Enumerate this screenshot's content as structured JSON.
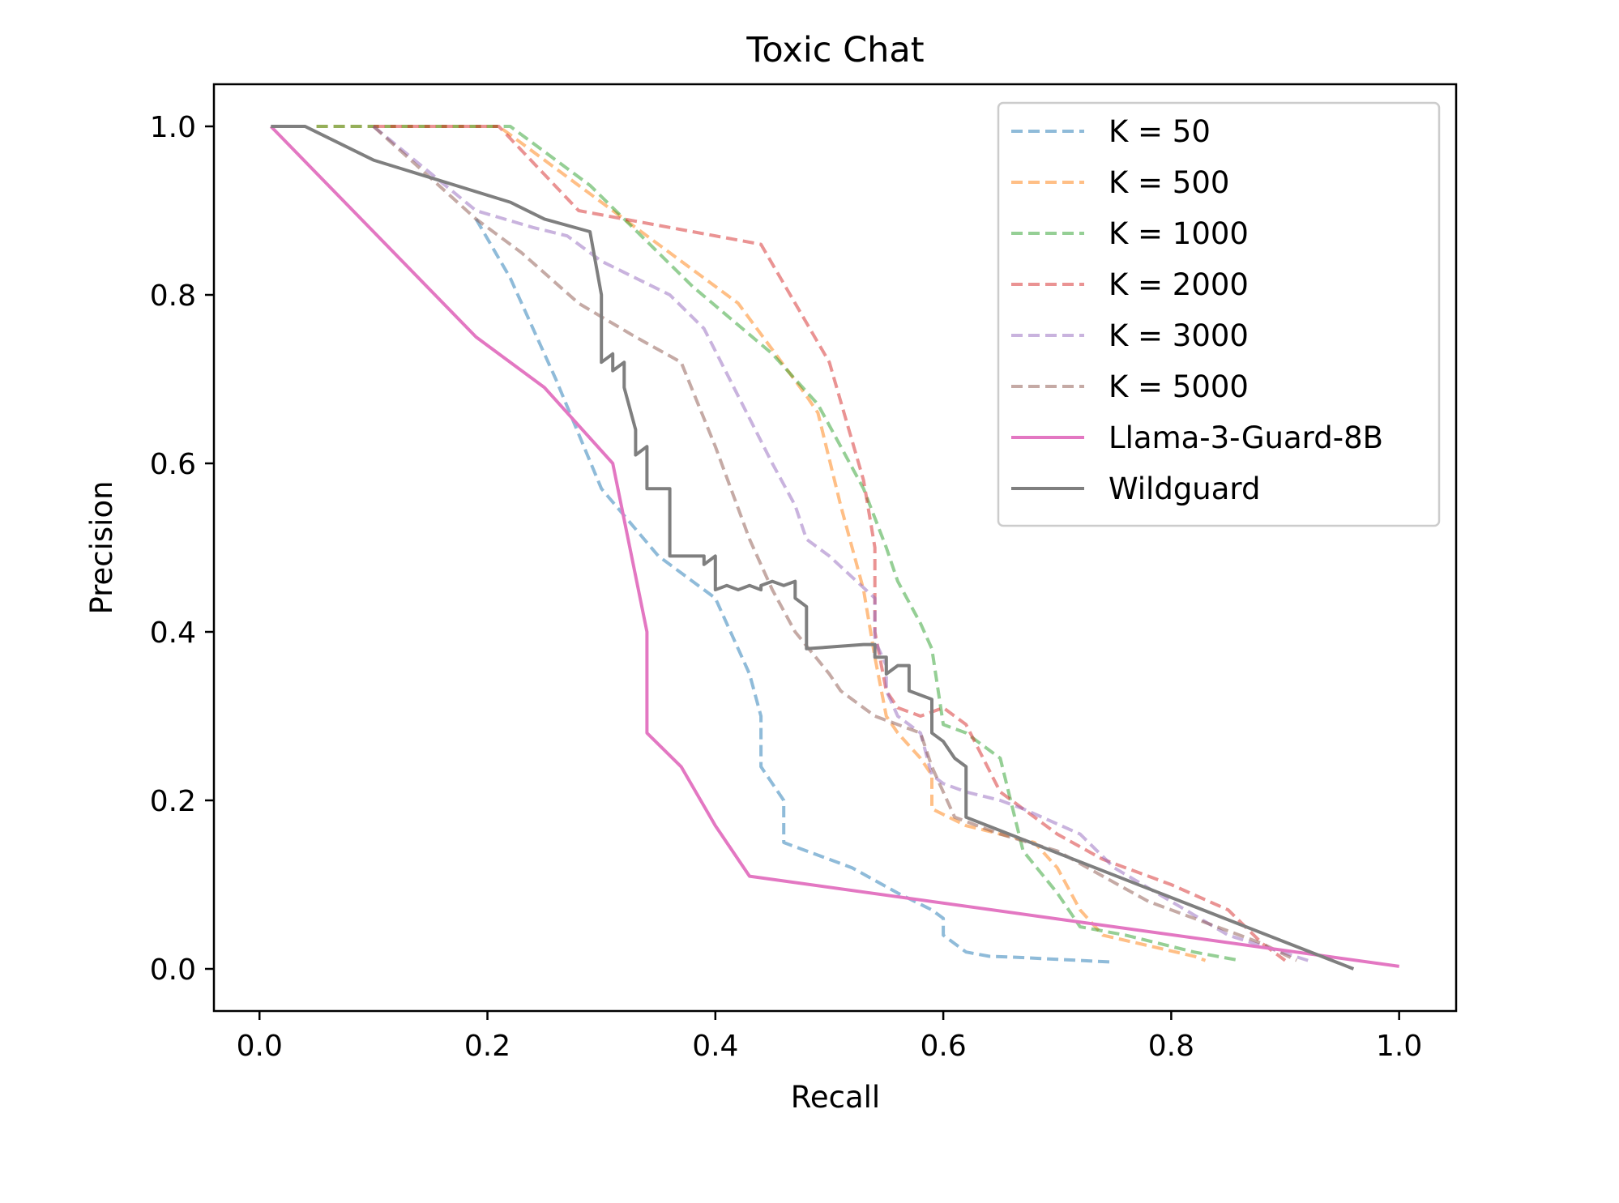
{
  "chart_data": {
    "type": "line",
    "title": "Toxic Chat",
    "xlabel": "Recall",
    "ylabel": "Precision",
    "xlim": [
      -0.04,
      1.05
    ],
    "ylim": [
      -0.05,
      1.05
    ],
    "xticks": [
      0.0,
      0.2,
      0.4,
      0.6,
      0.8,
      1.0
    ],
    "yticks": [
      0.0,
      0.2,
      0.4,
      0.6,
      0.8,
      1.0
    ],
    "xtick_labels": [
      "0.0",
      "0.2",
      "0.4",
      "0.6",
      "0.8",
      "1.0"
    ],
    "ytick_labels": [
      "0.0",
      "0.2",
      "0.4",
      "0.6",
      "0.8",
      "1.0"
    ],
    "grid": false,
    "legend_position": "top-right",
    "series": [
      {
        "name": "K = 50",
        "color": "#1f77b4",
        "style": "dashed",
        "x": [
          0.19,
          0.22,
          0.26,
          0.3,
          0.35,
          0.4,
          0.43,
          0.44,
          0.44,
          0.46,
          0.46,
          0.52,
          0.56,
          0.59,
          0.6,
          0.6,
          0.62,
          0.64,
          0.66,
          0.72,
          0.75
        ],
        "y": [
          0.89,
          0.82,
          0.7,
          0.57,
          0.49,
          0.44,
          0.35,
          0.3,
          0.24,
          0.2,
          0.15,
          0.12,
          0.09,
          0.07,
          0.06,
          0.04,
          0.02,
          0.015,
          0.014,
          0.01,
          0.008
        ]
      },
      {
        "name": "K = 500",
        "color": "#ff7f0e",
        "style": "dashed",
        "x": [
          0.05,
          0.21,
          0.26,
          0.34,
          0.42,
          0.48,
          0.49,
          0.51,
          0.52,
          0.53,
          0.54,
          0.55,
          0.56,
          0.58,
          0.59,
          0.59,
          0.62,
          0.65,
          0.68,
          0.7,
          0.72,
          0.74,
          0.82,
          0.83
        ],
        "y": [
          1.0,
          1.0,
          0.95,
          0.87,
          0.79,
          0.68,
          0.66,
          0.55,
          0.5,
          0.45,
          0.37,
          0.3,
          0.28,
          0.25,
          0.23,
          0.19,
          0.17,
          0.16,
          0.15,
          0.12,
          0.07,
          0.04,
          0.015,
          0.01
        ]
      },
      {
        "name": "K = 1000",
        "color": "#2ca02c",
        "style": "dashed",
        "x": [
          0.05,
          0.22,
          0.29,
          0.38,
          0.45,
          0.49,
          0.53,
          0.55,
          0.56,
          0.58,
          0.59,
          0.6,
          0.62,
          0.65,
          0.67,
          0.7,
          0.72,
          0.76,
          0.82,
          0.86
        ],
        "y": [
          1.0,
          1.0,
          0.93,
          0.81,
          0.73,
          0.67,
          0.57,
          0.5,
          0.46,
          0.41,
          0.38,
          0.29,
          0.28,
          0.25,
          0.14,
          0.09,
          0.05,
          0.04,
          0.02,
          0.01
        ]
      },
      {
        "name": "K = 2000",
        "color": "#d62728",
        "style": "dashed",
        "x": [
          0.1,
          0.21,
          0.28,
          0.32,
          0.44,
          0.5,
          0.53,
          0.54,
          0.54,
          0.55,
          0.56,
          0.58,
          0.6,
          0.62,
          0.65,
          0.7,
          0.74,
          0.8,
          0.85,
          0.88,
          0.9
        ],
        "y": [
          1.0,
          1.0,
          0.9,
          0.89,
          0.86,
          0.72,
          0.58,
          0.5,
          0.4,
          0.33,
          0.31,
          0.3,
          0.31,
          0.29,
          0.21,
          0.16,
          0.13,
          0.1,
          0.07,
          0.03,
          0.01
        ]
      },
      {
        "name": "K = 3000",
        "color": "#9467bd",
        "style": "dashed",
        "x": [
          0.1,
          0.19,
          0.24,
          0.27,
          0.3,
          0.36,
          0.39,
          0.42,
          0.45,
          0.47,
          0.48,
          0.5,
          0.54,
          0.54,
          0.55,
          0.55,
          0.56,
          0.58,
          0.59,
          0.6,
          0.62,
          0.65,
          0.67,
          0.72,
          0.75,
          0.8,
          0.85,
          0.92
        ],
        "y": [
          1.0,
          0.9,
          0.88,
          0.87,
          0.84,
          0.8,
          0.76,
          0.68,
          0.6,
          0.55,
          0.51,
          0.49,
          0.44,
          0.39,
          0.36,
          0.33,
          0.3,
          0.28,
          0.23,
          0.22,
          0.21,
          0.2,
          0.19,
          0.16,
          0.12,
          0.08,
          0.04,
          0.01
        ]
      },
      {
        "name": "K = 5000",
        "color": "#8c564b",
        "style": "dashed",
        "x": [
          0.1,
          0.19,
          0.23,
          0.28,
          0.33,
          0.37,
          0.4,
          0.43,
          0.45,
          0.47,
          0.5,
          0.51,
          0.54,
          0.56,
          0.58,
          0.59,
          0.61,
          0.65,
          0.7,
          0.74,
          0.78,
          0.84,
          0.88,
          0.91
        ],
        "y": [
          1.0,
          0.89,
          0.85,
          0.79,
          0.75,
          0.72,
          0.62,
          0.51,
          0.45,
          0.4,
          0.35,
          0.33,
          0.3,
          0.29,
          0.28,
          0.24,
          0.18,
          0.16,
          0.14,
          0.11,
          0.08,
          0.05,
          0.03,
          0.01
        ]
      },
      {
        "name": "Llama-3-Guard-8B",
        "color": "#e377c2",
        "style": "solid",
        "x": [
          0.01,
          0.19,
          0.25,
          0.31,
          0.34,
          0.34,
          0.37,
          0.4,
          0.43,
          1.0
        ],
        "y": [
          1.0,
          0.75,
          0.69,
          0.6,
          0.4,
          0.28,
          0.24,
          0.17,
          0.11,
          0.003
        ]
      },
      {
        "name": "Wildguard",
        "color": "#7f7f7f",
        "style": "solid",
        "x": [
          0.01,
          0.04,
          0.1,
          0.22,
          0.25,
          0.29,
          0.3,
          0.3,
          0.31,
          0.31,
          0.32,
          0.32,
          0.33,
          0.33,
          0.34,
          0.34,
          0.36,
          0.36,
          0.39,
          0.39,
          0.4,
          0.4,
          0.41,
          0.42,
          0.43,
          0.44,
          0.44,
          0.45,
          0.46,
          0.47,
          0.47,
          0.48,
          0.48,
          0.53,
          0.54,
          0.54,
          0.55,
          0.55,
          0.56,
          0.57,
          0.57,
          0.59,
          0.59,
          0.6,
          0.61,
          0.62,
          0.62,
          0.96
        ],
        "y": [
          1.0,
          1.0,
          0.96,
          0.91,
          0.89,
          0.875,
          0.8,
          0.72,
          0.73,
          0.71,
          0.72,
          0.69,
          0.64,
          0.61,
          0.62,
          0.57,
          0.57,
          0.49,
          0.49,
          0.48,
          0.49,
          0.45,
          0.455,
          0.45,
          0.455,
          0.45,
          0.455,
          0.46,
          0.455,
          0.46,
          0.44,
          0.43,
          0.38,
          0.385,
          0.385,
          0.37,
          0.37,
          0.35,
          0.36,
          0.36,
          0.33,
          0.32,
          0.28,
          0.27,
          0.25,
          0.24,
          0.18,
          0.0
        ]
      }
    ]
  }
}
